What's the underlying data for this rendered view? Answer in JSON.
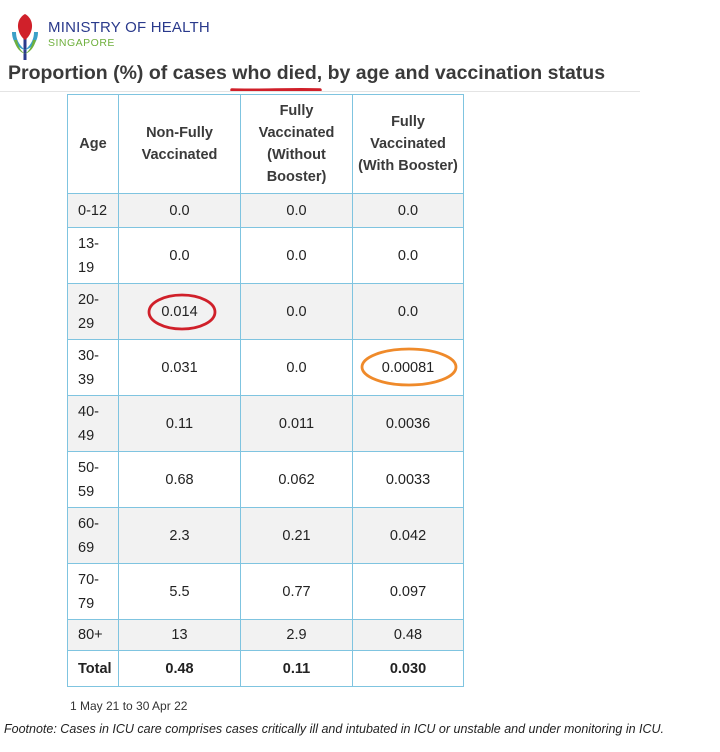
{
  "header": {
    "org_name": "MINISTRY OF HEALTH",
    "org_country": "SINGAPORE",
    "title_part1": "Proportion (%) of cases ",
    "title_highlight": "who died",
    "title_part2": ", by age and vaccination status"
  },
  "table": {
    "headers": [
      "Age",
      "Non-Fully Vaccinated",
      "Fully Vaccinated (Without Booster)",
      "Fully Vaccinated (With Booster)"
    ],
    "rows": [
      {
        "age": "0-12",
        "nfv": "0.0",
        "fv_no_booster": "0.0",
        "fv_booster": "0.0"
      },
      {
        "age": "13-19",
        "nfv": "0.0",
        "fv_no_booster": "0.0",
        "fv_booster": "0.0"
      },
      {
        "age": "20-29",
        "nfv": "0.014",
        "fv_no_booster": "0.0",
        "fv_booster": "0.0"
      },
      {
        "age": "30-39",
        "nfv": "0.031",
        "fv_no_booster": "0.0",
        "fv_booster": "0.00081"
      },
      {
        "age": "40-49",
        "nfv": "0.11",
        "fv_no_booster": "0.011",
        "fv_booster": "0.0036"
      },
      {
        "age": "50-59",
        "nfv": "0.68",
        "fv_no_booster": "0.062",
        "fv_booster": "0.0033"
      },
      {
        "age": "60-69",
        "nfv": "2.3",
        "fv_no_booster": "0.21",
        "fv_booster": "0.042"
      },
      {
        "age": "70-79",
        "nfv": "5.5",
        "fv_no_booster": "0.77",
        "fv_booster": "0.097"
      },
      {
        "age": "80+",
        "nfv": "13",
        "fv_no_booster": "2.9",
        "fv_booster": "0.48"
      }
    ],
    "total": {
      "age": "Total",
      "nfv": "0.48",
      "fv_no_booster": "0.11",
      "fv_booster": "0.030"
    }
  },
  "period": "1 May 21 to 30 Apr 22",
  "footnote": "Footnote: Cases in ICU care comprises cases critically ill and intubated in ICU or unstable and under monitoring in ICU.",
  "colors": {
    "brand_blue": "#2a3a8c",
    "brand_green": "#6fb03d",
    "highlight_red": "#d0202a",
    "highlight_orange": "#ef8a2a",
    "table_border": "#7fc4e0"
  }
}
